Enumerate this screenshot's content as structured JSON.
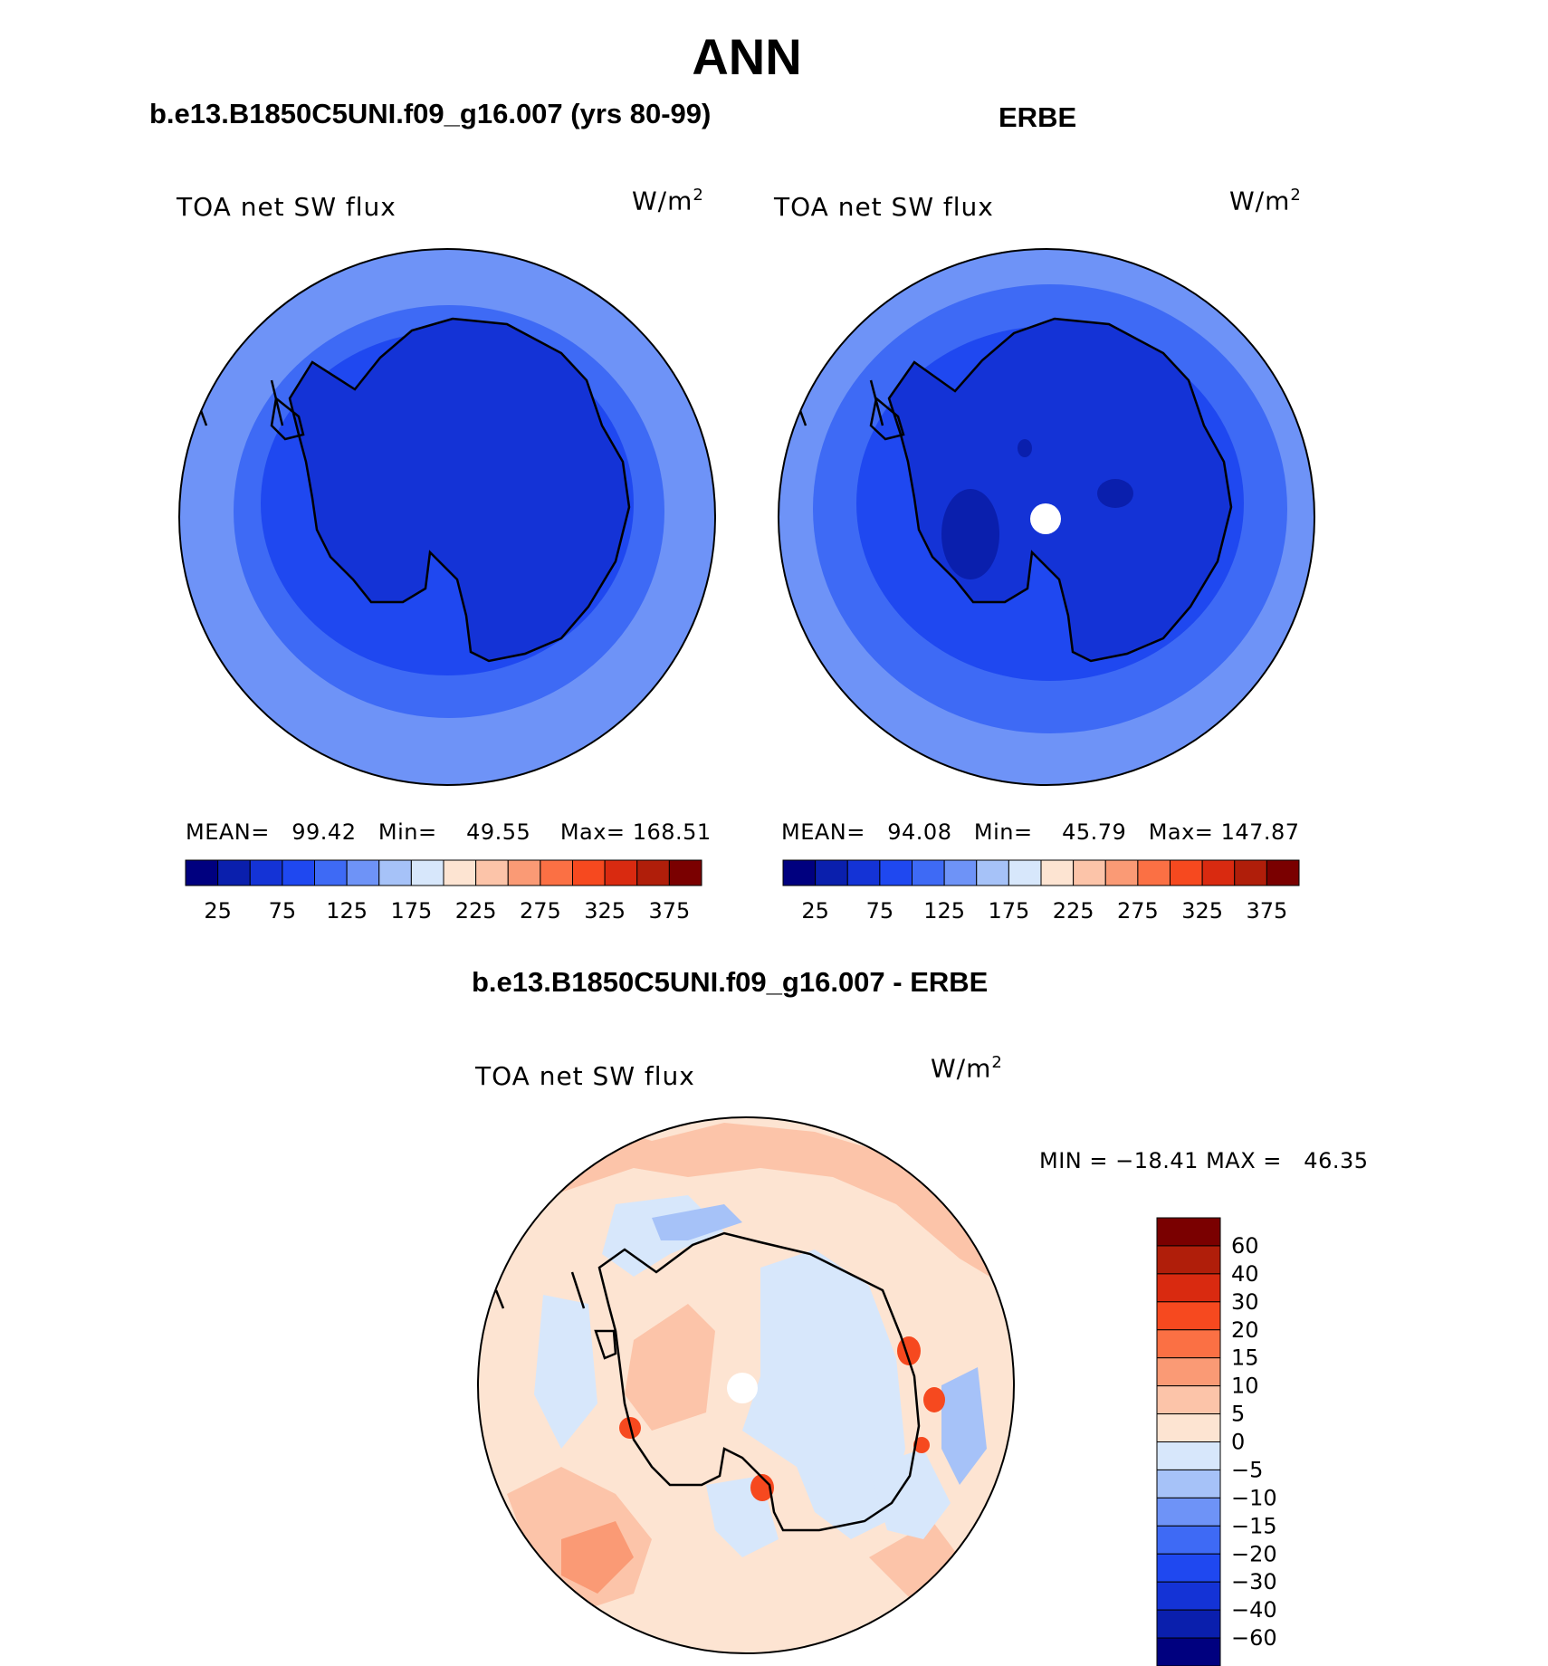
{
  "page_title": "ANN",
  "panels": [
    {
      "title": "b.e13.B1850C5UNI.f09_g16.007 (yrs 80-99)",
      "variable": "TOA net SW flux",
      "units": "W/m",
      "units_sup": "2",
      "stats": {
        "mean_label": "MEAN=",
        "mean": "99.42",
        "min_label": "Min=",
        "min": "49.55",
        "max_label": "Max=",
        "max": "168.51"
      }
    },
    {
      "title": "ERBE",
      "variable": "TOA net SW flux",
      "units": "W/m",
      "units_sup": "2",
      "stats": {
        "mean_label": "MEAN=",
        "mean": "94.08",
        "min_label": "Min=",
        "min": "45.79",
        "max_label": "Max=",
        "max": "147.87"
      }
    }
  ],
  "colorbar_top": {
    "ticks": [
      "25",
      "75",
      "125",
      "175",
      "225",
      "275",
      "325",
      "375"
    ],
    "colors": [
      "#00007f",
      "#0a1fad",
      "#1433d6",
      "#1f48f0",
      "#3e6af5",
      "#6e93f7",
      "#a6c2f8",
      "#d7e7fb",
      "#fde4d2",
      "#fcc4a9",
      "#fa9a75",
      "#fb7044",
      "#f6491f",
      "#d92a10",
      "#b01e0a",
      "#7a0000"
    ]
  },
  "diff_panel": {
    "title": "b.e13.B1850C5UNI.f09_g16.007 - ERBE",
    "variable": "TOA net SW flux",
    "units": "W/m",
    "units_sup": "2",
    "minmax": {
      "min_label": "MIN =",
      "min": "−18.41",
      "max_label": "MAX =",
      "max": "46.35"
    },
    "colorbar": {
      "ticks": [
        "60",
        "40",
        "30",
        "20",
        "15",
        "10",
        "5",
        "0",
        "−5",
        "−10",
        "−15",
        "−20",
        "−30",
        "−40",
        "−60"
      ],
      "colors": [
        "#7a0000",
        "#b01e0a",
        "#d92a10",
        "#f6491f",
        "#fb7044",
        "#fa9a75",
        "#fcc4a9",
        "#fde4d2",
        "#d7e7fb",
        "#a6c2f8",
        "#6e93f7",
        "#3e6af5",
        "#1f48f0",
        "#1433d6",
        "#0a1fad",
        "#00007f"
      ]
    }
  },
  "map_colors": {
    "outer": "#6e93f7",
    "mid": "#3e6af5",
    "inner": "#1f48f0",
    "continent": "#1433d6",
    "deep": "#0a1fad",
    "diff_base": "#fde4d2",
    "diff_warm": "#fcc4a9",
    "diff_hot": "#fa9a75",
    "diff_red": "#f6491f",
    "diff_cool": "#d7e7fb",
    "diff_cold": "#a6c2f8",
    "diff_blue": "#6e93f7",
    "pole_hole": "#ffffff"
  }
}
